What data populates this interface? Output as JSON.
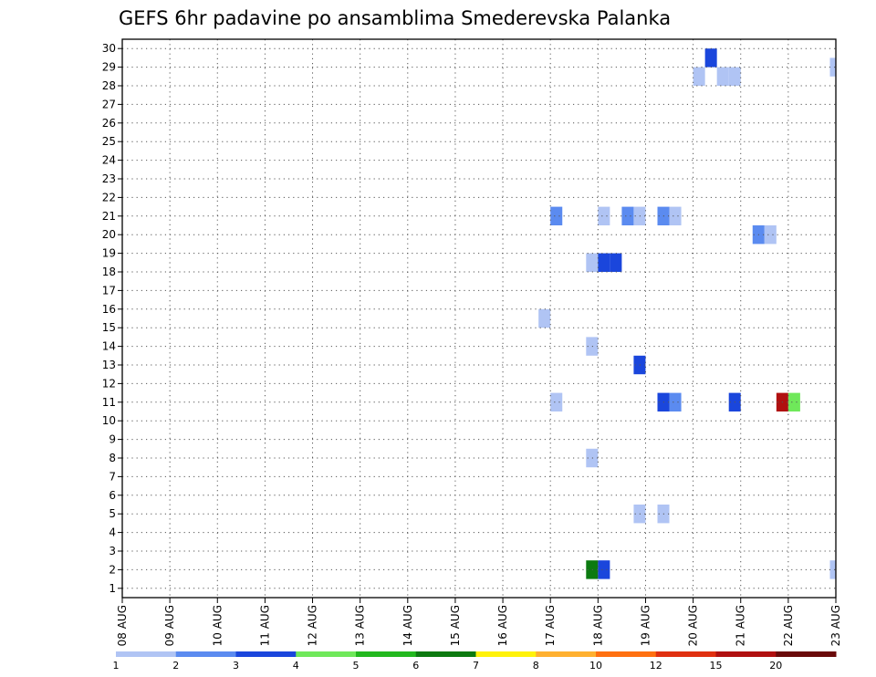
{
  "chart_data": {
    "type": "heatmap",
    "title": "GEFS 6hr padavine po ansamblima Smederevska Palanka",
    "x_labels": [
      "08 AUG",
      "09 AUG",
      "10 AUG",
      "11 AUG",
      "12 AUG",
      "13 AUG",
      "14 AUG",
      "15 AUG",
      "16 AUG",
      "17 AUG",
      "18 AUG",
      "19 AUG",
      "20 AUG",
      "21 AUG",
      "22 AUG",
      "23 AUG"
    ],
    "x_unit": "6hr steps from 08 AUG 00Z",
    "x_range": [
      0,
      60
    ],
    "y_labels": [
      "1",
      "2",
      "3",
      "4",
      "5",
      "6",
      "7",
      "8",
      "9",
      "10",
      "11",
      "12",
      "13",
      "14",
      "15",
      "16",
      "17",
      "18",
      "19",
      "20",
      "21",
      "22",
      "23",
      "24",
      "25",
      "26",
      "27",
      "28",
      "29",
      "30"
    ],
    "y_range": [
      0.5,
      30.5
    ],
    "grid": true,
    "colorbar": {
      "labels": [
        "1",
        "2",
        "3",
        "4",
        "5",
        "6",
        "7",
        "8",
        "10",
        "12",
        "15",
        "20"
      ],
      "colors": [
        "#b0c4f4",
        "#5b8bf0",
        "#1a46dc",
        "#6fe85a",
        "#22b81e",
        "#0c7a10",
        "#fff20a",
        "#ffb030",
        "#ff7010",
        "#e03010",
        "#b01010",
        "#6a0a0a"
      ]
    },
    "cells": [
      {
        "step": 49.5,
        "member": 29.5,
        "value": 3
      },
      {
        "step": 60,
        "member": 29,
        "value": 1
      },
      {
        "step": 48.5,
        "member": 28.5,
        "value": 1
      },
      {
        "step": 50.5,
        "member": 28.5,
        "value": 1
      },
      {
        "step": 51.5,
        "member": 28.5,
        "value": 1
      },
      {
        "step": 36.5,
        "member": 21,
        "value": 2
      },
      {
        "step": 40.5,
        "member": 21,
        "value": 1
      },
      {
        "step": 42.5,
        "member": 21,
        "value": 2
      },
      {
        "step": 43.5,
        "member": 21,
        "value": 1
      },
      {
        "step": 45.5,
        "member": 21,
        "value": 2
      },
      {
        "step": 46.5,
        "member": 21,
        "value": 1
      },
      {
        "step": 53.5,
        "member": 20,
        "value": 2
      },
      {
        "step": 54.5,
        "member": 20,
        "value": 1
      },
      {
        "step": 39.5,
        "member": 18.5,
        "value": 1
      },
      {
        "step": 40.5,
        "member": 18.5,
        "value": 3
      },
      {
        "step": 41.5,
        "member": 18.5,
        "value": 3
      },
      {
        "step": 35.5,
        "member": 15.5,
        "value": 1
      },
      {
        "step": 39.5,
        "member": 14,
        "value": 1
      },
      {
        "step": 43.5,
        "member": 13,
        "value": 3
      },
      {
        "step": 36.5,
        "member": 11,
        "value": 1
      },
      {
        "step": 45.5,
        "member": 11,
        "value": 3
      },
      {
        "step": 46.5,
        "member": 11,
        "value": 2
      },
      {
        "step": 51.5,
        "member": 11,
        "value": 3
      },
      {
        "step": 55.5,
        "member": 11,
        "value": 15
      },
      {
        "step": 56.5,
        "member": 11,
        "value": 4
      },
      {
        "step": 39.5,
        "member": 8,
        "value": 1
      },
      {
        "step": 43.5,
        "member": 5,
        "value": 1
      },
      {
        "step": 45.5,
        "member": 5,
        "value": 1
      },
      {
        "step": 39.5,
        "member": 2,
        "value": 6
      },
      {
        "step": 40.5,
        "member": 2,
        "value": 3
      },
      {
        "step": 60,
        "member": 2,
        "value": 1
      }
    ]
  }
}
